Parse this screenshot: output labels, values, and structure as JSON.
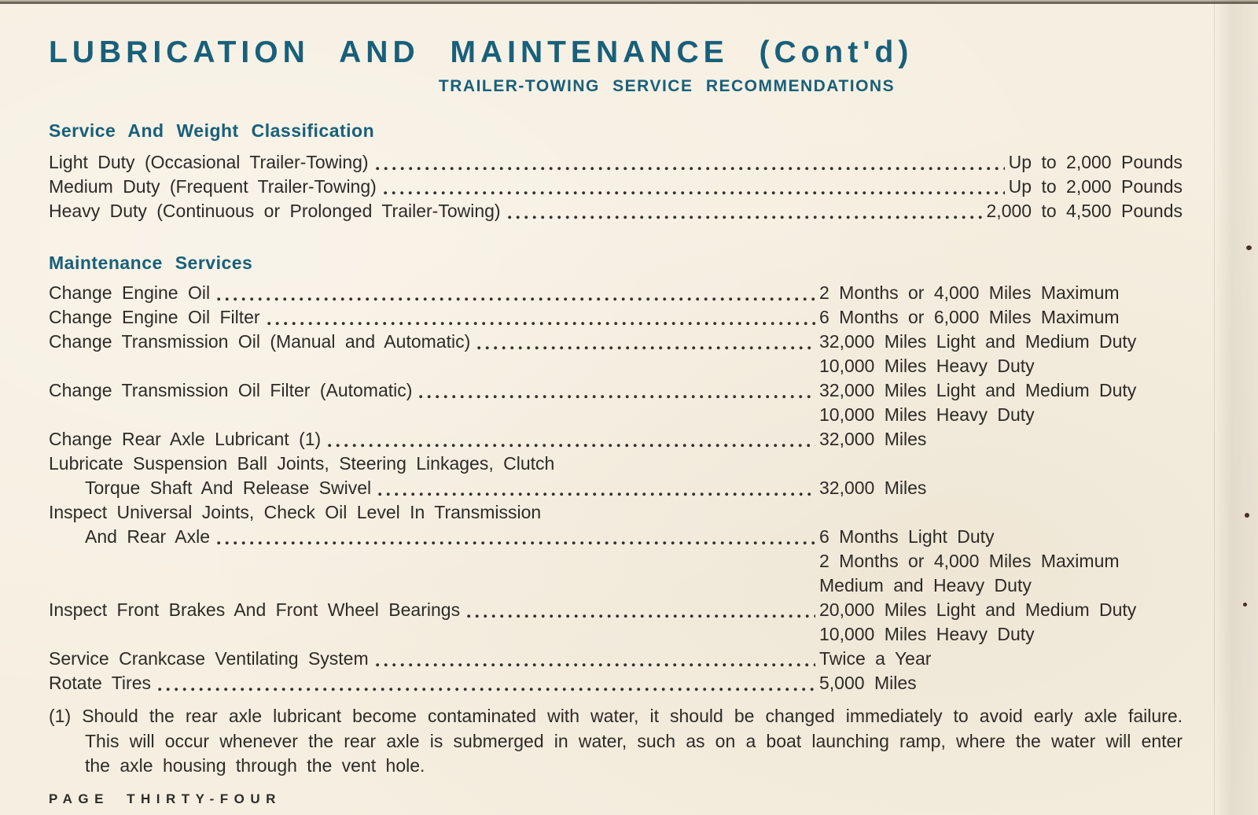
{
  "page": {
    "title": "LUBRICATION AND MAINTENANCE (Cont'd)",
    "subtitle": "TRAILER-TOWING SERVICE RECOMMENDATIONS",
    "footer": "PAGE THIRTY-FOUR",
    "accent_color": "#18607a",
    "paper_color": "#f6efe1",
    "text_color": "#2d2b27"
  },
  "sections": [
    {
      "heading": "Service And Weight Classification",
      "value_align": "right",
      "rows": [
        {
          "label": [
            "Light Duty (Occasional Trailer-Towing)"
          ],
          "value": [
            "Up to 2,000 Pounds"
          ]
        },
        {
          "label": [
            "Medium Duty (Frequent Trailer-Towing)"
          ],
          "value": [
            "Up to 2,000 Pounds"
          ]
        },
        {
          "label": [
            "Heavy Duty (Continuous or Prolonged Trailer-Towing)"
          ],
          "value": [
            "2,000 to 4,500 Pounds"
          ]
        }
      ]
    },
    {
      "heading": "Maintenance Services",
      "value_align": "column",
      "rows": [
        {
          "label": [
            "Change Engine Oil"
          ],
          "value": [
            "2 Months or 4,000 Miles Maximum"
          ]
        },
        {
          "label": [
            "Change Engine Oil Filter"
          ],
          "value": [
            "6 Months or 6,000 Miles Maximum"
          ]
        },
        {
          "label": [
            "Change Transmission Oil (Manual and Automatic)"
          ],
          "value": [
            "32,000 Miles Light and Medium Duty",
            "10,000 Miles Heavy Duty"
          ]
        },
        {
          "label": [
            "Change Transmission Oil Filter (Automatic)"
          ],
          "value": [
            "32,000 Miles Light and Medium Duty",
            "10,000 Miles Heavy Duty"
          ]
        },
        {
          "label": [
            "Change Rear Axle Lubricant (1)"
          ],
          "value": [
            "32,000 Miles"
          ]
        },
        {
          "label": [
            "Lubricate Suspension Ball Joints, Steering Linkages, Clutch",
            "Torque Shaft And Release Swivel"
          ],
          "value": [
            "32,000 Miles"
          ]
        },
        {
          "label": [
            "Inspect Universal Joints, Check Oil Level In Transmission",
            "And Rear Axle"
          ],
          "value": [
            "6 Months Light Duty",
            "2 Months or 4,000 Miles Maximum",
            "Medium and Heavy Duty"
          ]
        },
        {
          "label": [
            "Inspect Front Brakes And Front Wheel Bearings"
          ],
          "value": [
            "20,000 Miles Light and Medium Duty",
            "10,000 Miles Heavy Duty"
          ]
        },
        {
          "label": [
            "Service Crankcase Ventilating System"
          ],
          "value": [
            "Twice a Year"
          ]
        },
        {
          "label": [
            "Rotate Tires"
          ],
          "value": [
            "5,000 Miles"
          ]
        }
      ]
    }
  ],
  "footnote": {
    "marker": "(1)",
    "text": "Should the rear axle lubricant become contaminated with water, it should be changed immediately to avoid early axle failure. This will occur whenever the rear axle is submerged in water, such as on a boat launching ramp, where the water will enter the axle housing through the vent hole."
  }
}
